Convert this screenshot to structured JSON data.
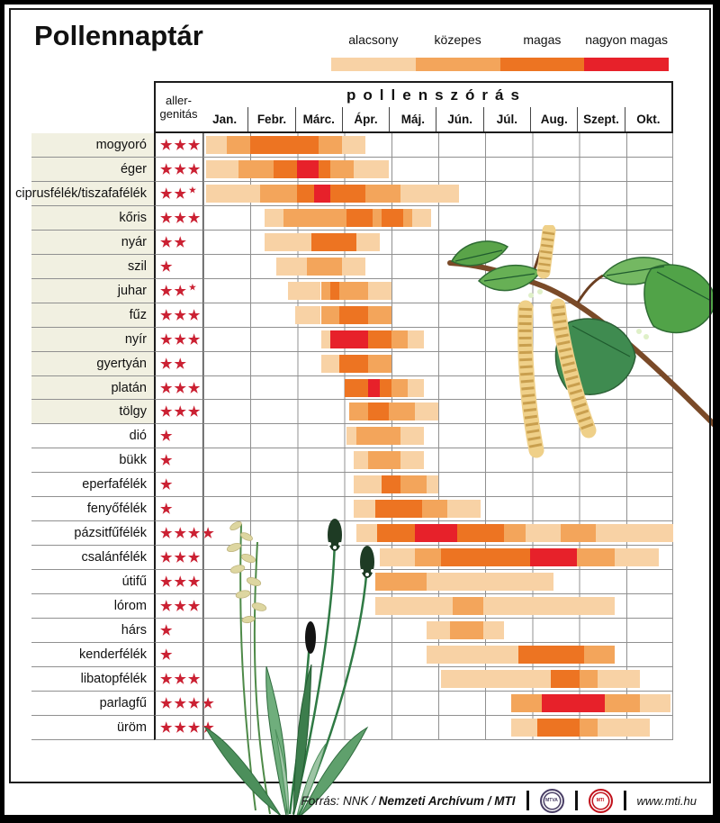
{
  "title": "Pollennaptár",
  "legend": {
    "items": [
      {
        "label": "alacsony",
        "color": "#f8d2a5",
        "level": 1
      },
      {
        "label": "közepes",
        "color": "#f3a55b",
        "level": 2
      },
      {
        "label": "magas",
        "color": "#ed7422",
        "level": 3
      },
      {
        "label": "nagyon magas",
        "color": "#e7212a",
        "level": 4
      }
    ]
  },
  "table_header": {
    "allergenicity_line1": "aller-",
    "allergenicity_line2": "genitás",
    "pollen_header": "pollenszórás"
  },
  "chart_data": {
    "type": "heatmap",
    "note": "Pollen calendar: per plant, colored bar segments across months Jan-Oct; segment = [start_month_index, end_month_index, intensity_level]; 0 = start of January, 10 = end of October; levels: 1 alacsony(low), 2 közepes(medium), 3 magas(high), 4 nagyon magas(very high). allergenicity = number of red stars (x.5 = half mark).",
    "months": [
      "Jan.",
      "Febr.",
      "Márc.",
      "Ápr.",
      "Máj.",
      "Jún.",
      "Júl.",
      "Aug.",
      "Szept.",
      "Okt."
    ],
    "x_axis": {
      "unit": "month",
      "range": [
        0,
        10
      ],
      "grid": true
    },
    "levels": [
      {
        "value": 1,
        "label": "alacsony",
        "color": "#f8d2a5"
      },
      {
        "value": 2,
        "label": "közepes",
        "color": "#f3a55b"
      },
      {
        "value": 3,
        "label": "magas",
        "color": "#ed7422"
      },
      {
        "value": 4,
        "label": "nagyon magas",
        "color": "#e7212a"
      }
    ],
    "rows": [
      {
        "name": "mogyoró",
        "allergenicity": 3,
        "label_shaded": true,
        "segments": [
          [
            0.05,
            0.5,
            1
          ],
          [
            0.5,
            1.0,
            2
          ],
          [
            1.0,
            2.45,
            3
          ],
          [
            2.45,
            2.95,
            2
          ],
          [
            2.95,
            3.45,
            1
          ]
        ]
      },
      {
        "name": "éger",
        "allergenicity": 3,
        "label_shaded": true,
        "segments": [
          [
            0.05,
            0.75,
            1
          ],
          [
            0.75,
            1.5,
            2
          ],
          [
            1.5,
            2.0,
            3
          ],
          [
            2.0,
            2.45,
            4
          ],
          [
            2.45,
            2.7,
            3
          ],
          [
            2.7,
            3.2,
            2
          ],
          [
            3.2,
            3.95,
            1
          ]
        ]
      },
      {
        "name": "ciprusfélék/tiszafafélék",
        "allergenicity": 2.5,
        "label_shaded": true,
        "segments": [
          [
            0.05,
            1.2,
            1
          ],
          [
            1.2,
            2.0,
            2
          ],
          [
            2.0,
            2.35,
            3
          ],
          [
            2.35,
            2.7,
            4
          ],
          [
            2.7,
            3.45,
            3
          ],
          [
            3.45,
            4.2,
            2
          ],
          [
            4.2,
            5.45,
            1
          ]
        ]
      },
      {
        "name": "kőris",
        "allergenicity": 3,
        "label_shaded": true,
        "segments": [
          [
            1.3,
            1.7,
            1
          ],
          [
            1.7,
            3.05,
            2
          ],
          [
            3.05,
            3.6,
            3
          ],
          [
            3.6,
            3.8,
            2
          ],
          [
            3.8,
            4.25,
            3
          ],
          [
            4.25,
            4.45,
            2
          ],
          [
            4.45,
            4.85,
            1
          ]
        ]
      },
      {
        "name": "nyár",
        "allergenicity": 2,
        "label_shaded": true,
        "segments": [
          [
            1.3,
            2.3,
            1
          ],
          [
            2.3,
            3.25,
            3
          ],
          [
            3.25,
            3.75,
            1
          ]
        ]
      },
      {
        "name": "szil",
        "allergenicity": 1,
        "label_shaded": true,
        "segments": [
          [
            1.55,
            2.2,
            1
          ],
          [
            2.2,
            2.95,
            2
          ],
          [
            2.95,
            3.45,
            1
          ]
        ]
      },
      {
        "name": "juhar",
        "allergenicity": 2.5,
        "label_shaded": true,
        "segments": [
          [
            1.8,
            2.5,
            1
          ],
          [
            2.5,
            2.7,
            2
          ],
          [
            2.7,
            2.9,
            3
          ],
          [
            2.9,
            3.5,
            2
          ],
          [
            3.5,
            4.0,
            1
          ]
        ]
      },
      {
        "name": "fűz",
        "allergenicity": 3,
        "label_shaded": true,
        "segments": [
          [
            1.95,
            2.5,
            1
          ],
          [
            2.5,
            2.9,
            2
          ],
          [
            2.9,
            3.5,
            3
          ],
          [
            3.5,
            4.0,
            2
          ]
        ]
      },
      {
        "name": "nyír",
        "allergenicity": 3,
        "label_shaded": true,
        "segments": [
          [
            2.5,
            2.7,
            1
          ],
          [
            2.7,
            3.5,
            4
          ],
          [
            3.5,
            4.0,
            3
          ],
          [
            4.0,
            4.35,
            2
          ],
          [
            4.35,
            4.7,
            1
          ]
        ]
      },
      {
        "name": "gyertyán",
        "allergenicity": 2,
        "label_shaded": true,
        "segments": [
          [
            2.5,
            2.9,
            1
          ],
          [
            2.9,
            3.5,
            3
          ],
          [
            3.5,
            4.0,
            2
          ]
        ]
      },
      {
        "name": "platán",
        "allergenicity": 3,
        "label_shaded": true,
        "segments": [
          [
            3.0,
            3.5,
            3
          ],
          [
            3.5,
            3.75,
            4
          ],
          [
            3.75,
            4.0,
            3
          ],
          [
            4.0,
            4.35,
            2
          ],
          [
            4.35,
            4.7,
            1
          ]
        ]
      },
      {
        "name": "tölgy",
        "allergenicity": 3,
        "label_shaded": true,
        "segments": [
          [
            3.1,
            3.5,
            2
          ],
          [
            3.5,
            3.95,
            3
          ],
          [
            3.95,
            4.5,
            2
          ],
          [
            4.5,
            5.0,
            1
          ]
        ]
      },
      {
        "name": "dió",
        "allergenicity": 1,
        "label_shaded": false,
        "segments": [
          [
            3.05,
            3.25,
            1
          ],
          [
            3.25,
            4.2,
            2
          ],
          [
            4.2,
            4.7,
            1
          ]
        ]
      },
      {
        "name": "bükk",
        "allergenicity": 1,
        "label_shaded": false,
        "segments": [
          [
            3.2,
            3.5,
            1
          ],
          [
            3.5,
            4.2,
            2
          ],
          [
            4.2,
            4.7,
            1
          ]
        ]
      },
      {
        "name": "eperfafélék",
        "allergenicity": 1,
        "label_shaded": false,
        "segments": [
          [
            3.2,
            3.8,
            1
          ],
          [
            3.8,
            4.2,
            3
          ],
          [
            4.2,
            4.75,
            2
          ],
          [
            4.75,
            5.0,
            1
          ]
        ]
      },
      {
        "name": "fenyőfélék",
        "allergenicity": 1,
        "label_shaded": false,
        "segments": [
          [
            3.2,
            3.65,
            1
          ],
          [
            3.65,
            4.65,
            3
          ],
          [
            4.65,
            5.2,
            2
          ],
          [
            5.2,
            5.9,
            1
          ]
        ]
      },
      {
        "name": "pázsitfűfélék",
        "allergenicity": 4,
        "label_shaded": false,
        "segments": [
          [
            3.25,
            3.7,
            1
          ],
          [
            3.7,
            4.5,
            3
          ],
          [
            4.5,
            5.4,
            4
          ],
          [
            5.4,
            6.4,
            3
          ],
          [
            6.4,
            6.85,
            2
          ],
          [
            6.85,
            7.6,
            1
          ],
          [
            7.6,
            8.35,
            2
          ],
          [
            8.35,
            10,
            1
          ]
        ]
      },
      {
        "name": "csalánfélék",
        "allergenicity": 3,
        "label_shaded": false,
        "segments": [
          [
            3.75,
            4.5,
            1
          ],
          [
            4.5,
            5.05,
            2
          ],
          [
            5.05,
            6.95,
            3
          ],
          [
            6.95,
            7.95,
            4
          ],
          [
            7.95,
            8.75,
            2
          ],
          [
            8.75,
            9.7,
            1
          ]
        ]
      },
      {
        "name": "útifű",
        "allergenicity": 3,
        "label_shaded": false,
        "segments": [
          [
            3.65,
            4.75,
            2
          ],
          [
            4.75,
            7.45,
            1
          ]
        ]
      },
      {
        "name": "lórom",
        "allergenicity": 3,
        "label_shaded": false,
        "segments": [
          [
            3.65,
            5.3,
            1
          ],
          [
            5.3,
            5.95,
            2
          ],
          [
            5.95,
            8.75,
            1
          ]
        ]
      },
      {
        "name": "hárs",
        "allergenicity": 1,
        "label_shaded": false,
        "segments": [
          [
            4.75,
            5.25,
            1
          ],
          [
            5.25,
            5.95,
            2
          ],
          [
            5.95,
            6.4,
            1
          ]
        ]
      },
      {
        "name": "kenderfélék",
        "allergenicity": 1,
        "label_shaded": false,
        "segments": [
          [
            4.75,
            6.7,
            1
          ],
          [
            6.7,
            8.1,
            3
          ],
          [
            8.1,
            8.75,
            2
          ]
        ]
      },
      {
        "name": "libatopfélék",
        "allergenicity": 3,
        "label_shaded": false,
        "segments": [
          [
            5.05,
            7.4,
            1
          ],
          [
            7.4,
            8.0,
            3
          ],
          [
            8.0,
            8.4,
            2
          ],
          [
            8.4,
            9.3,
            1
          ]
        ]
      },
      {
        "name": "parlagfű",
        "allergenicity": 4,
        "label_shaded": false,
        "segments": [
          [
            6.55,
            7.2,
            2
          ],
          [
            7.2,
            8.55,
            4
          ],
          [
            8.55,
            9.3,
            2
          ],
          [
            9.3,
            9.95,
            1
          ]
        ]
      },
      {
        "name": "üröm",
        "allergenicity": 4,
        "label_shaded": false,
        "segments": [
          [
            6.55,
            7.1,
            1
          ],
          [
            7.1,
            8.0,
            3
          ],
          [
            8.0,
            8.4,
            2
          ],
          [
            8.4,
            9.5,
            1
          ]
        ]
      }
    ]
  },
  "footer": {
    "source_prefix": "Forrás: NNK /",
    "source_bold": "Nemzeti Archívum / MTI",
    "logo1": "MTVA",
    "logo2": "MTI",
    "url": "www.mti.hu"
  },
  "decorations": {
    "top_right": "birch-branch-with-catkins",
    "bottom_left": "grass-and-plantain-plants"
  }
}
